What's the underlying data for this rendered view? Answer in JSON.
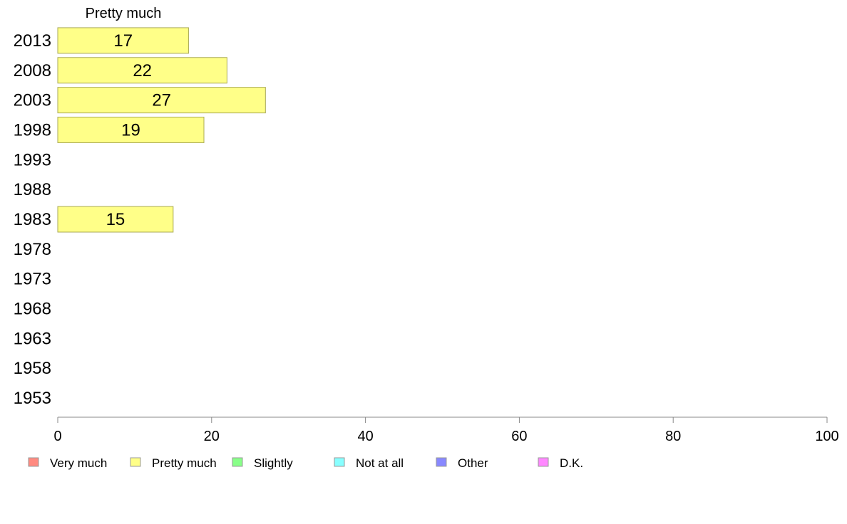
{
  "chart_data": {
    "type": "bar",
    "orientation": "horizontal",
    "categories": [
      "2013",
      "2008",
      "2003",
      "1998",
      "1993",
      "1988",
      "1983",
      "1978",
      "1973",
      "1968",
      "1963",
      "1958",
      "1953"
    ],
    "series": [
      {
        "name": "Pretty much",
        "values": [
          17,
          22,
          27,
          19,
          null,
          null,
          15,
          null,
          null,
          null,
          null,
          null,
          null
        ],
        "color": "#ffff88"
      }
    ],
    "xlim": [
      0,
      100
    ],
    "xticks": [
      0,
      20,
      40,
      60,
      80,
      100
    ],
    "legend": {
      "placement": "bottom",
      "items": [
        {
          "label": "Very much",
          "color": "#ff8a80"
        },
        {
          "label": "Pretty much",
          "color": "#ffff88"
        },
        {
          "label": "Slightly",
          "color": "#88ff88"
        },
        {
          "label": "Not at all",
          "color": "#88ffff"
        },
        {
          "label": "Other",
          "color": "#8888ff"
        },
        {
          "label": "D.K.",
          "color": "#ff88ff"
        }
      ]
    },
    "grid": false,
    "bar_border_color": "#aaaa55",
    "axis_color": "#888888"
  }
}
